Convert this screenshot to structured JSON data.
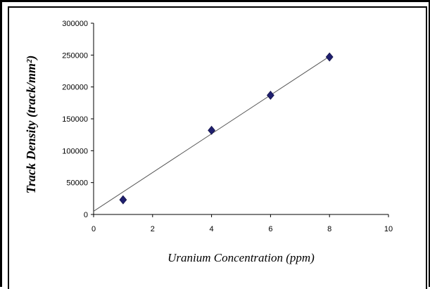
{
  "chart_data": {
    "type": "scatter",
    "xlabel": "Uranium Concentration (ppm)",
    "ylabel": "Track Density (track/mm²)",
    "xlim": [
      0,
      10
    ],
    "ylim": [
      0,
      300000
    ],
    "x_ticks": [
      "0",
      "2",
      "4",
      "6",
      "8",
      "10"
    ],
    "y_ticks": [
      "0",
      "50000",
      "100000",
      "150000",
      "200000",
      "250000",
      "300000"
    ],
    "grid": false,
    "legend": "none",
    "series": [
      {
        "points": [
          {
            "x": 1,
            "y": 23000
          },
          {
            "x": 4,
            "y": 132000
          },
          {
            "x": 6,
            "y": 187000
          },
          {
            "x": 8,
            "y": 247000
          }
        ],
        "marker": "diamond",
        "color": "#1f1f6e"
      }
    ],
    "trendline": {
      "type": "linear",
      "from": {
        "x": 0,
        "y": 5000
      },
      "to": {
        "x": 8,
        "y": 248000
      },
      "color": "#555555"
    }
  }
}
